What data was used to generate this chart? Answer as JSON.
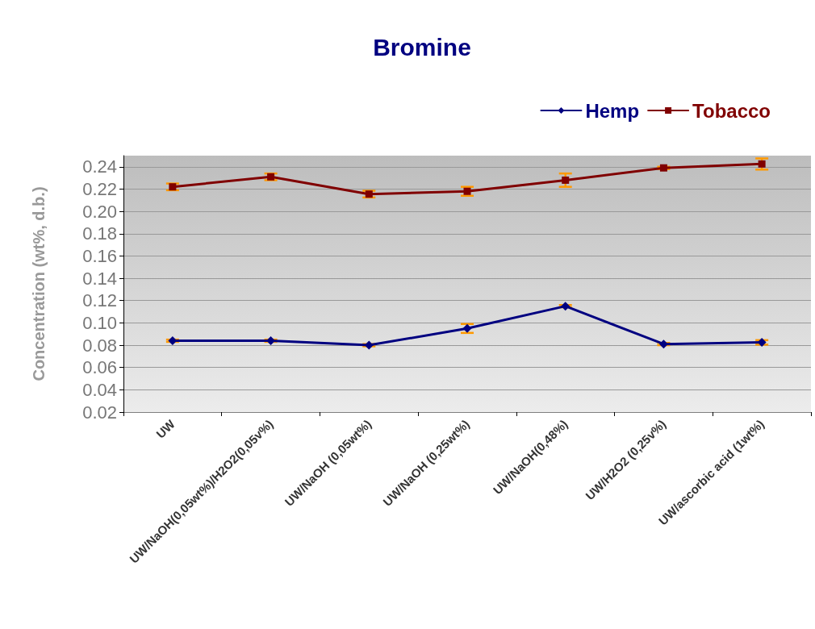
{
  "chart_data": {
    "type": "line",
    "title": "Bromine",
    "ylabel": "Concentration (wt%, d.b.)",
    "categories": [
      "UW",
      "UW/NaOH(0,05wt%)/H2O2(0,05v%)",
      "UW/NaOH (0,05wt%)",
      "UW/NaOH (0,25wt%)",
      "UW/NaOH(0,48%)",
      "UW/H2O2 (0,25v%)",
      "UW/ascorbic acid (1wt%)"
    ],
    "series": [
      {
        "name": "Hemp",
        "color": "#000080",
        "marker": "diamond",
        "values": [
          0.084,
          0.084,
          0.08,
          0.095,
          0.115,
          0.081,
          0.0825
        ],
        "errors": [
          0.001,
          0.001,
          0.001,
          0.004,
          0.001,
          0.001,
          0.002
        ]
      },
      {
        "name": "Tobacco",
        "color": "#800000",
        "marker": "square",
        "values": [
          0.222,
          0.231,
          0.2155,
          0.218,
          0.228,
          0.239,
          0.2425
        ],
        "errors": [
          0.003,
          0.003,
          0.003,
          0.004,
          0.006,
          0.001,
          0.005
        ]
      }
    ],
    "ylim": [
      0.02,
      0.25
    ],
    "yticks": [
      {
        "value": 0.02,
        "label": "0.02"
      },
      {
        "value": 0.04,
        "label": "0.04"
      },
      {
        "value": 0.06,
        "label": "0.06"
      },
      {
        "value": 0.08,
        "label": "0.08"
      },
      {
        "value": 0.1,
        "label": "0.10"
      },
      {
        "value": 0.12,
        "label": "0.12"
      },
      {
        "value": 0.14,
        "label": "0.14"
      },
      {
        "value": 0.16,
        "label": "0.16"
      },
      {
        "value": 0.18,
        "label": "0.18"
      },
      {
        "value": 0.2,
        "label": "0.20"
      },
      {
        "value": 0.22,
        "label": "0.22"
      },
      {
        "value": 0.24,
        "label": "0.24"
      }
    ],
    "grid": "y",
    "legend": "top right",
    "line_style": "solid"
  }
}
